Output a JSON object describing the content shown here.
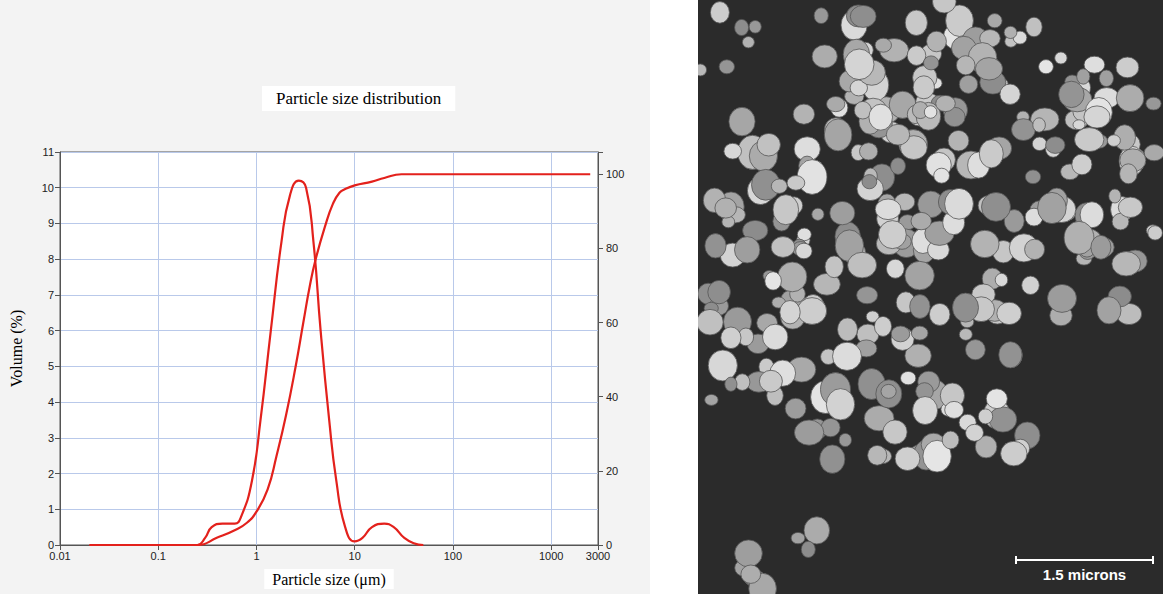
{
  "chart_data": {
    "type": "line",
    "title": "Particle size distribution",
    "xlabel": "Particle size (μm)",
    "ylabel": "Volume (%)",
    "log": "x",
    "grid": true,
    "xlim": [
      0.01,
      3000
    ],
    "xticks": [
      0.01,
      0.1,
      1,
      10,
      100,
      1000,
      3000
    ],
    "ylim": [
      0,
      11
    ],
    "yticks": [
      0,
      1,
      2,
      3,
      4,
      5,
      6,
      7,
      8,
      9,
      10,
      11
    ],
    "y2lim": [
      0,
      106
    ],
    "y2ticks": [
      0,
      20,
      40,
      60,
      80,
      100
    ],
    "series": [
      {
        "color": "#e3211c",
        "x": [
          0.02,
          0.1,
          0.25,
          0.3,
          0.35,
          0.45,
          0.6,
          0.7,
          0.9,
          1.1,
          1.4,
          1.8,
          2.2,
          2.7,
          3.2,
          3.8,
          4.5,
          5.5,
          6.5,
          8,
          10,
          12,
          15,
          20,
          25,
          32,
          40,
          50
        ],
        "values": [
          0,
          0,
          0,
          0.2,
          0.5,
          0.6,
          0.6,
          0.8,
          1.8,
          3.5,
          6,
          8.5,
          9.8,
          10.2,
          10,
          8.5,
          6,
          3.5,
          1.8,
          0.5,
          0.1,
          0.2,
          0.5,
          0.6,
          0.5,
          0.2,
          0.05,
          0
        ]
      },
      {
        "color": "#e3211c",
        "axis": "y2",
        "x": [
          0.02,
          0.25,
          0.4,
          0.6,
          0.8,
          1,
          1.3,
          1.6,
          2,
          2.5,
          3,
          3.5,
          4,
          5,
          6,
          7,
          8,
          10,
          15,
          20,
          30,
          100,
          1000,
          2500
        ],
        "values": [
          0,
          0,
          2,
          4,
          6,
          9,
          15,
          24,
          35,
          48,
          60,
          70,
          77,
          86,
          92,
          95,
          96,
          97,
          98,
          99,
          100,
          100,
          100,
          100
        ]
      }
    ]
  },
  "micrograph": {
    "scale_bar_label": "1.5 microns"
  }
}
